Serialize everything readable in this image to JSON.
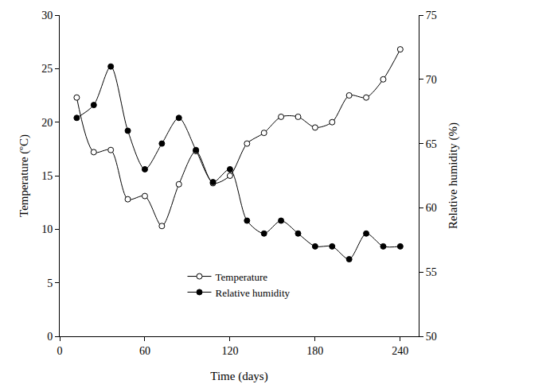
{
  "chart_data": {
    "type": "line",
    "x_label": "Time (days)",
    "y_label": "Temperature (ºC)",
    "y2_label": "Relative humidity (%)",
    "x": [
      12,
      24,
      36,
      48,
      60,
      72,
      84,
      96,
      108,
      120,
      132,
      144,
      156,
      168,
      180,
      192,
      204,
      216,
      228,
      240
    ],
    "xlim": [
      0,
      253
    ],
    "xticks": [
      0,
      60,
      120,
      180,
      240
    ],
    "ylim": [
      0,
      30
    ],
    "yticks": [
      0,
      5,
      10,
      15,
      20,
      25,
      30
    ],
    "y2lim": [
      50,
      75
    ],
    "y2ticks": [
      50,
      55,
      60,
      65,
      70,
      75
    ],
    "grid": false,
    "legend": "lower center",
    "series": [
      {
        "name": "Temperature",
        "color": "#000000",
        "marker": "circle-open",
        "line_style": "solid",
        "values": [
          22.3,
          17.2,
          17.4,
          12.8,
          13.1,
          10.3,
          14.2,
          17.3,
          14.3,
          15.0,
          18.0,
          19.0,
          20.5,
          20.5,
          19.5,
          20.0,
          22.5,
          22.3,
          24.0,
          26.8
        ]
      },
      {
        "name": "Relative humidity",
        "color": "#000000",
        "marker": "circle",
        "line_style": "solid",
        "axis": "y2",
        "values": [
          67,
          68,
          71,
          66,
          63,
          65,
          67,
          64.5,
          62,
          63,
          59,
          58,
          59,
          58,
          57,
          57,
          56,
          58,
          57,
          57
        ]
      }
    ]
  }
}
